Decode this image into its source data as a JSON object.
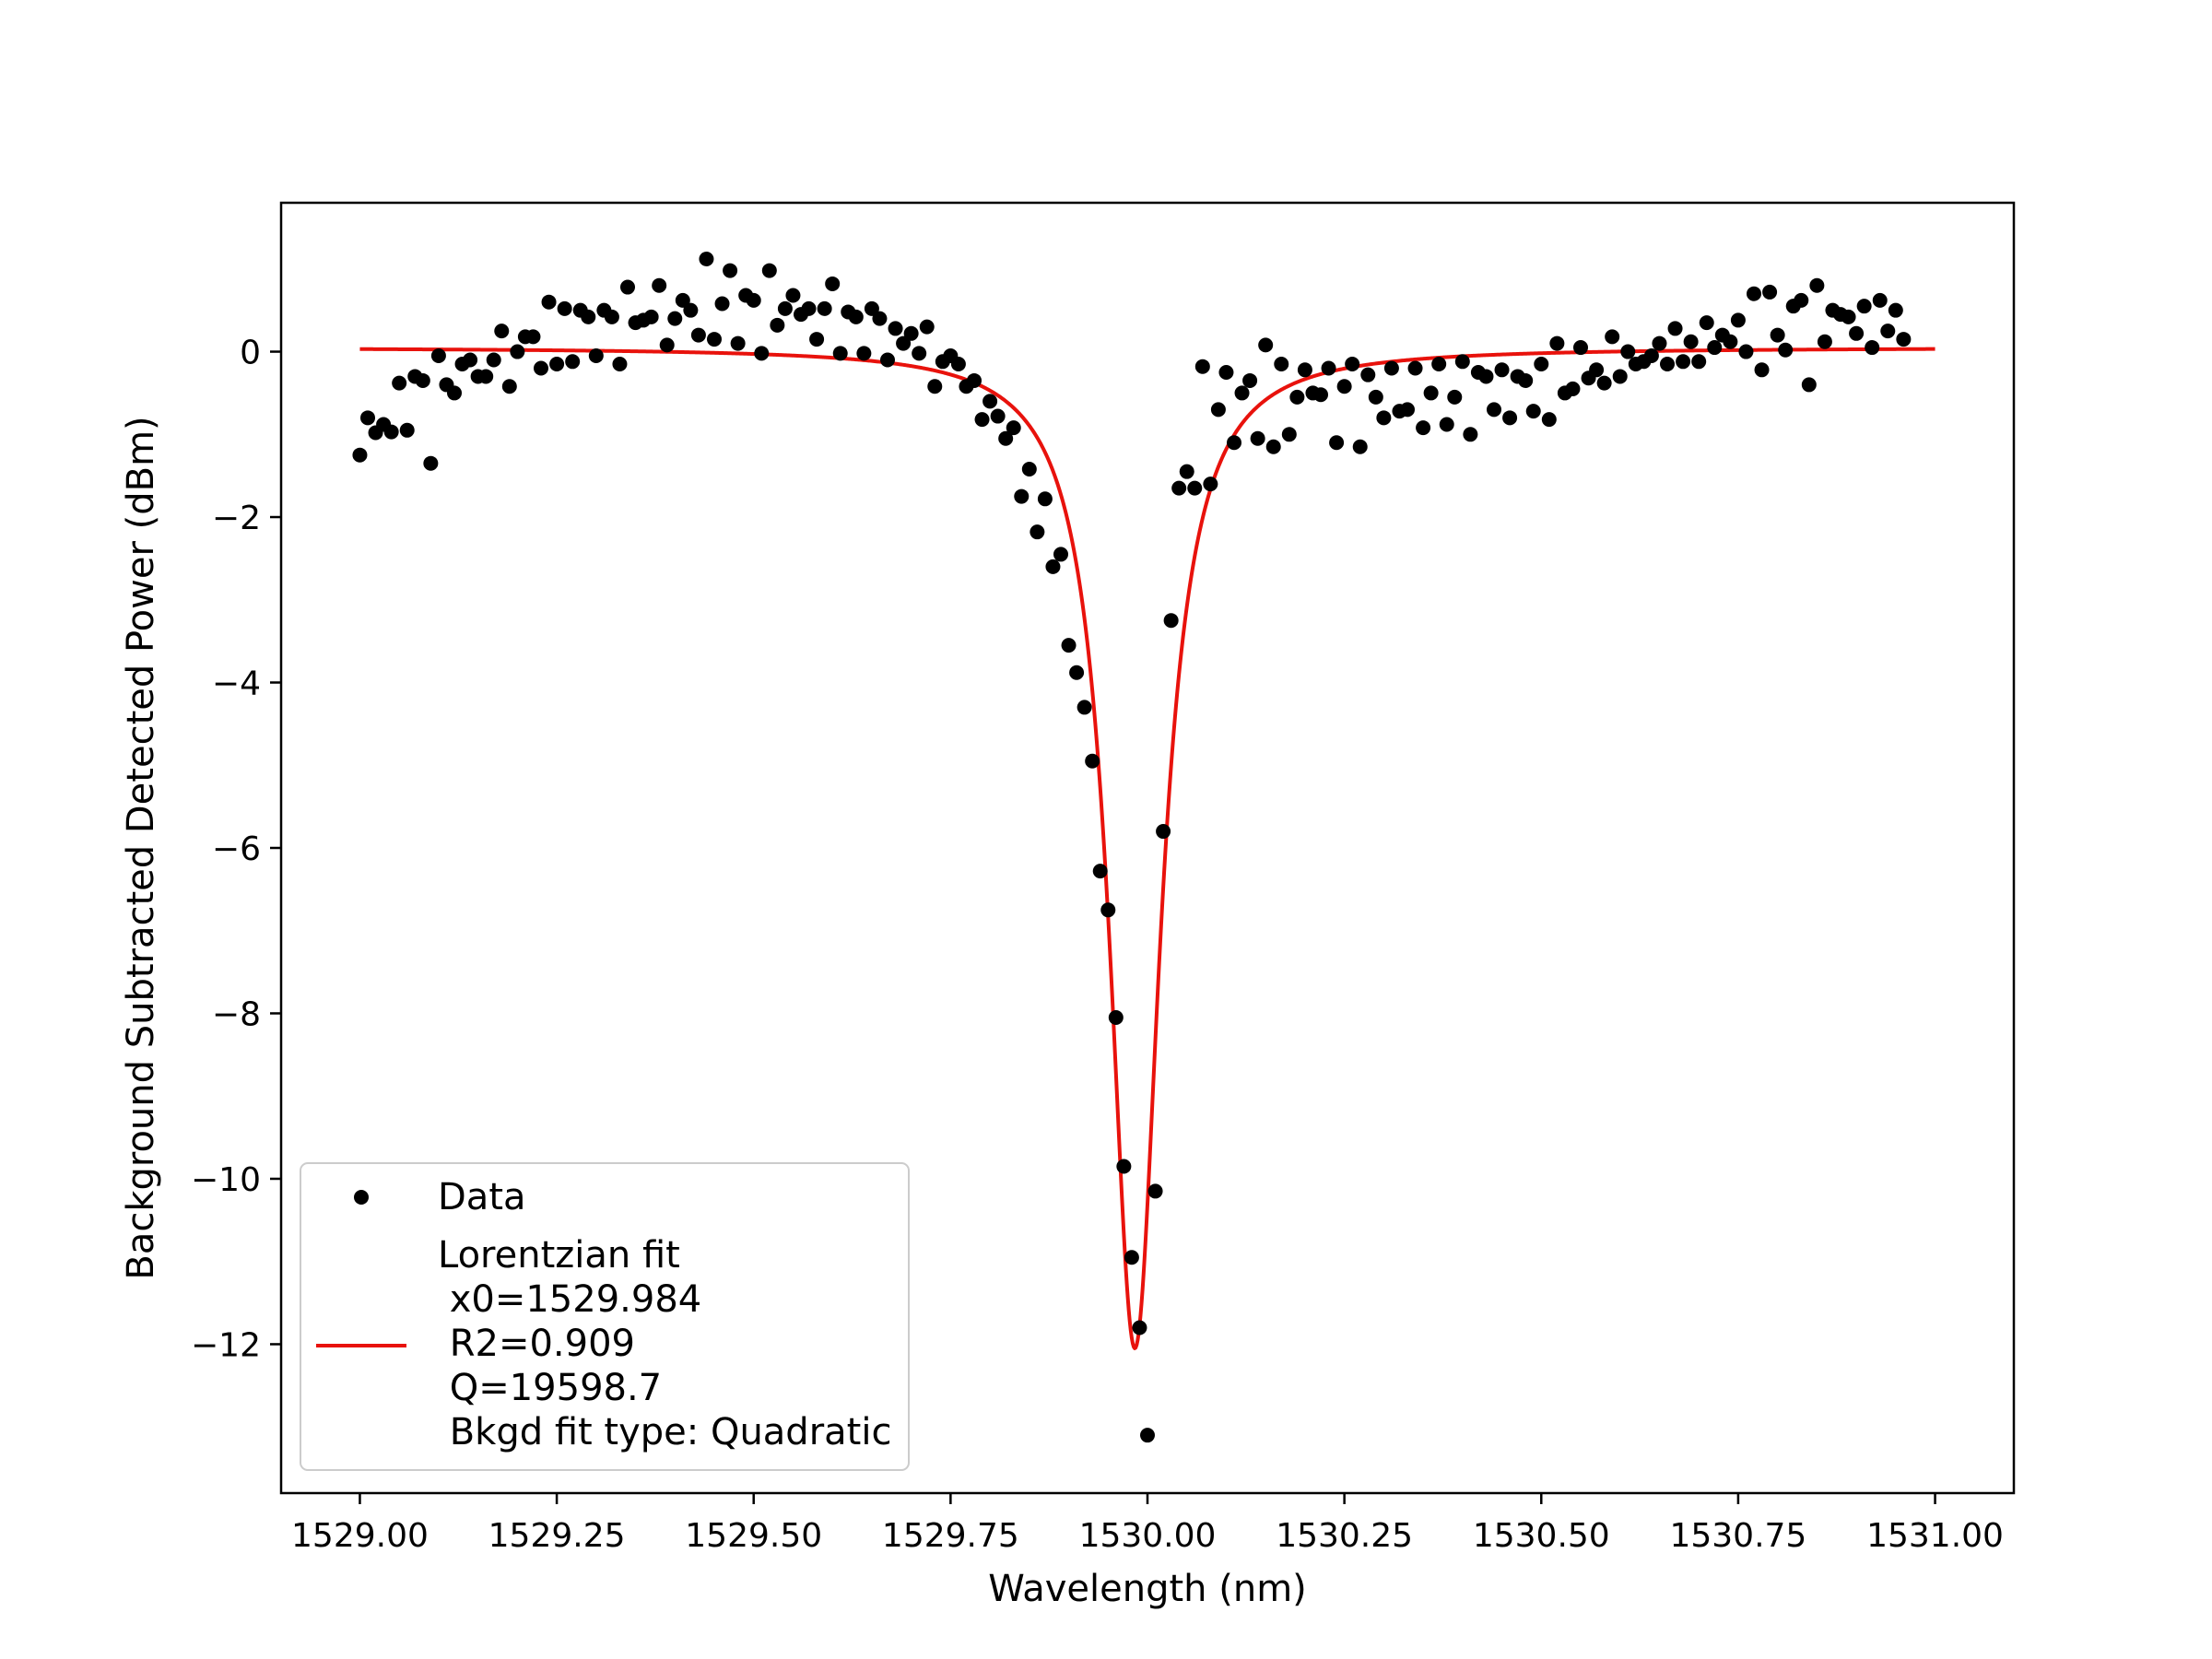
{
  "chart_data": {
    "type": "scatter",
    "title": "",
    "xlabel": "Wavelength (nm)",
    "ylabel": "Background Subtracted Detected Power (dBm)",
    "xlim": [
      1528.9,
      1531.1
    ],
    "ylim": [
      -13.8,
      1.8
    ],
    "xticks": [
      1529.0,
      1529.25,
      1529.5,
      1529.75,
      1530.0,
      1530.25,
      1530.5,
      1530.75,
      1531.0
    ],
    "xtick_labels": [
      "1529.00",
      "1529.25",
      "1529.50",
      "1529.75",
      "1530.00",
      "1530.25",
      "1530.50",
      "1530.75",
      "1531.00"
    ],
    "yticks": [
      0,
      -2,
      -4,
      -6,
      -8,
      -10,
      -12
    ],
    "ytick_labels": [
      "0",
      "−2",
      "−4",
      "−6",
      "−8",
      "−10",
      "−12"
    ],
    "grid": false,
    "legend_position": "lower-left",
    "series": [
      {
        "name": "Data",
        "kind": "scatter",
        "color": "#000000",
        "points": [
          [
            1529.0,
            -1.25
          ],
          [
            1529.01,
            -0.8
          ],
          [
            1529.02,
            -0.98
          ],
          [
            1529.03,
            -0.88
          ],
          [
            1529.04,
            -0.97
          ],
          [
            1529.05,
            -0.38
          ],
          [
            1529.06,
            -0.95
          ],
          [
            1529.07,
            -0.3
          ],
          [
            1529.08,
            -0.35
          ],
          [
            1529.09,
            -1.35
          ],
          [
            1529.1,
            -0.05
          ],
          [
            1529.11,
            -0.4
          ],
          [
            1529.12,
            -0.5
          ],
          [
            1529.13,
            -0.15
          ],
          [
            1529.14,
            -0.1
          ],
          [
            1529.15,
            -0.3
          ],
          [
            1529.16,
            -0.3
          ],
          [
            1529.17,
            -0.1
          ],
          [
            1529.18,
            0.25
          ],
          [
            1529.19,
            -0.42
          ],
          [
            1529.2,
            0.0
          ],
          [
            1529.21,
            0.18
          ],
          [
            1529.22,
            0.18
          ],
          [
            1529.23,
            -0.2
          ],
          [
            1529.24,
            0.6
          ],
          [
            1529.25,
            -0.15
          ],
          [
            1529.26,
            0.52
          ],
          [
            1529.27,
            -0.12
          ],
          [
            1529.28,
            0.5
          ],
          [
            1529.29,
            0.42
          ],
          [
            1529.3,
            -0.05
          ],
          [
            1529.31,
            0.5
          ],
          [
            1529.32,
            0.42
          ],
          [
            1529.33,
            -0.15
          ],
          [
            1529.34,
            0.78
          ],
          [
            1529.35,
            0.35
          ],
          [
            1529.36,
            0.38
          ],
          [
            1529.37,
            0.42
          ],
          [
            1529.38,
            0.8
          ],
          [
            1529.39,
            0.08
          ],
          [
            1529.4,
            0.4
          ],
          [
            1529.41,
            0.62
          ],
          [
            1529.42,
            0.5
          ],
          [
            1529.43,
            0.2
          ],
          [
            1529.44,
            1.12
          ],
          [
            1529.45,
            0.15
          ],
          [
            1529.46,
            0.58
          ],
          [
            1529.47,
            0.98
          ],
          [
            1529.48,
            0.1
          ],
          [
            1529.49,
            0.68
          ],
          [
            1529.5,
            0.62
          ],
          [
            1529.51,
            -0.02
          ],
          [
            1529.52,
            0.98
          ],
          [
            1529.53,
            0.32
          ],
          [
            1529.54,
            0.52
          ],
          [
            1529.55,
            0.68
          ],
          [
            1529.56,
            0.45
          ],
          [
            1529.57,
            0.52
          ],
          [
            1529.58,
            0.15
          ],
          [
            1529.59,
            0.52
          ],
          [
            1529.6,
            0.82
          ],
          [
            1529.61,
            -0.02
          ],
          [
            1529.62,
            0.48
          ],
          [
            1529.63,
            0.42
          ],
          [
            1529.64,
            -0.02
          ],
          [
            1529.65,
            0.52
          ],
          [
            1529.66,
            0.4
          ],
          [
            1529.67,
            -0.1
          ],
          [
            1529.68,
            0.28
          ],
          [
            1529.69,
            0.1
          ],
          [
            1529.7,
            0.22
          ],
          [
            1529.71,
            -0.02
          ],
          [
            1529.72,
            0.3
          ],
          [
            1529.73,
            -0.42
          ],
          [
            1529.74,
            -0.12
          ],
          [
            1529.75,
            -0.05
          ],
          [
            1529.76,
            -0.15
          ],
          [
            1529.77,
            -0.42
          ],
          [
            1529.78,
            -0.35
          ],
          [
            1529.79,
            -0.82
          ],
          [
            1529.8,
            -0.6
          ],
          [
            1529.81,
            -0.78
          ],
          [
            1529.82,
            -1.05
          ],
          [
            1529.83,
            -0.92
          ],
          [
            1529.84,
            -1.75
          ],
          [
            1529.85,
            -1.42
          ],
          [
            1529.86,
            -2.18
          ],
          [
            1529.87,
            -1.78
          ],
          [
            1529.88,
            -2.6
          ],
          [
            1529.89,
            -2.45
          ],
          [
            1529.9,
            -3.55
          ],
          [
            1529.91,
            -3.88
          ],
          [
            1529.92,
            -4.3
          ],
          [
            1529.93,
            -4.95
          ],
          [
            1529.94,
            -6.28
          ],
          [
            1529.95,
            -6.75
          ],
          [
            1529.96,
            -8.05
          ],
          [
            1529.97,
            -9.85
          ],
          [
            1529.98,
            -10.95
          ],
          [
            1529.99,
            -11.8
          ],
          [
            1530.0,
            -13.1
          ],
          [
            1530.01,
            -10.15
          ],
          [
            1530.02,
            -5.8
          ],
          [
            1530.03,
            -3.25
          ],
          [
            1530.04,
            -1.65
          ],
          [
            1530.05,
            -1.45
          ],
          [
            1530.06,
            -1.65
          ],
          [
            1530.07,
            -0.18
          ],
          [
            1530.08,
            -1.6
          ],
          [
            1530.09,
            -0.7
          ],
          [
            1530.1,
            -0.25
          ],
          [
            1530.11,
            -1.1
          ],
          [
            1530.12,
            -0.5
          ],
          [
            1530.13,
            -0.35
          ],
          [
            1530.14,
            -1.05
          ],
          [
            1530.15,
            0.08
          ],
          [
            1530.16,
            -1.15
          ],
          [
            1530.17,
            -0.15
          ],
          [
            1530.18,
            -1.0
          ],
          [
            1530.19,
            -0.55
          ],
          [
            1530.2,
            -0.22
          ],
          [
            1530.21,
            -0.5
          ],
          [
            1530.22,
            -0.52
          ],
          [
            1530.23,
            -0.2
          ],
          [
            1530.24,
            -1.1
          ],
          [
            1530.25,
            -0.42
          ],
          [
            1530.26,
            -0.15
          ],
          [
            1530.27,
            -1.15
          ],
          [
            1530.28,
            -0.28
          ],
          [
            1530.29,
            -0.55
          ],
          [
            1530.3,
            -0.8
          ],
          [
            1530.31,
            -0.2
          ],
          [
            1530.32,
            -0.72
          ],
          [
            1530.33,
            -0.7
          ],
          [
            1530.34,
            -0.2
          ],
          [
            1530.35,
            -0.92
          ],
          [
            1530.36,
            -0.5
          ],
          [
            1530.37,
            -0.15
          ],
          [
            1530.38,
            -0.88
          ],
          [
            1530.39,
            -0.55
          ],
          [
            1530.4,
            -0.12
          ],
          [
            1530.41,
            -1.0
          ],
          [
            1530.42,
            -0.25
          ],
          [
            1530.43,
            -0.3
          ],
          [
            1530.44,
            -0.7
          ],
          [
            1530.45,
            -0.22
          ],
          [
            1530.46,
            -0.8
          ],
          [
            1530.47,
            -0.3
          ],
          [
            1530.48,
            -0.35
          ],
          [
            1530.49,
            -0.72
          ],
          [
            1530.5,
            -0.15
          ],
          [
            1530.51,
            -0.82
          ],
          [
            1530.52,
            0.1
          ],
          [
            1530.53,
            -0.5
          ],
          [
            1530.54,
            -0.45
          ],
          [
            1530.55,
            0.05
          ],
          [
            1530.56,
            -0.32
          ],
          [
            1530.57,
            -0.22
          ],
          [
            1530.58,
            -0.38
          ],
          [
            1530.59,
            0.18
          ],
          [
            1530.6,
            -0.3
          ],
          [
            1530.61,
            0.0
          ],
          [
            1530.62,
            -0.15
          ],
          [
            1530.63,
            -0.12
          ],
          [
            1530.64,
            -0.05
          ],
          [
            1530.65,
            0.1
          ],
          [
            1530.66,
            -0.15
          ],
          [
            1530.67,
            0.28
          ],
          [
            1530.68,
            -0.12
          ],
          [
            1530.69,
            0.12
          ],
          [
            1530.7,
            -0.12
          ],
          [
            1530.71,
            0.35
          ],
          [
            1530.72,
            0.05
          ],
          [
            1530.73,
            0.2
          ],
          [
            1530.74,
            0.12
          ],
          [
            1530.75,
            0.38
          ],
          [
            1530.76,
            0.0
          ],
          [
            1530.77,
            0.7
          ],
          [
            1530.78,
            -0.22
          ],
          [
            1530.79,
            0.72
          ],
          [
            1530.8,
            0.2
          ],
          [
            1530.81,
            0.02
          ],
          [
            1530.82,
            0.55
          ],
          [
            1530.83,
            0.62
          ],
          [
            1530.84,
            -0.4
          ],
          [
            1530.85,
            0.8
          ],
          [
            1530.86,
            0.12
          ],
          [
            1530.87,
            0.5
          ],
          [
            1530.88,
            0.45
          ],
          [
            1530.89,
            0.42
          ],
          [
            1530.9,
            0.22
          ],
          [
            1530.91,
            0.55
          ],
          [
            1530.92,
            0.05
          ],
          [
            1530.93,
            0.62
          ],
          [
            1530.94,
            0.25
          ],
          [
            1530.95,
            0.5
          ],
          [
            1530.96,
            0.15
          ]
        ]
      },
      {
        "name": "Lorentzian fit",
        "kind": "line",
        "color": "#e8120c",
        "model": "lorentzian",
        "x0": 1529.984,
        "amplitude": -12.1,
        "fwhm_nm": 0.078,
        "baseline": 0.05,
        "x_range": [
          1529.0,
          1531.0
        ]
      }
    ]
  },
  "legend": {
    "data_label": "Data",
    "fit_lines": [
      "Lorentzian fit",
      " x0=1529.984",
      " R2=0.909",
      " Q=19598.7",
      " Bkgd fit type: Quadratic"
    ]
  }
}
